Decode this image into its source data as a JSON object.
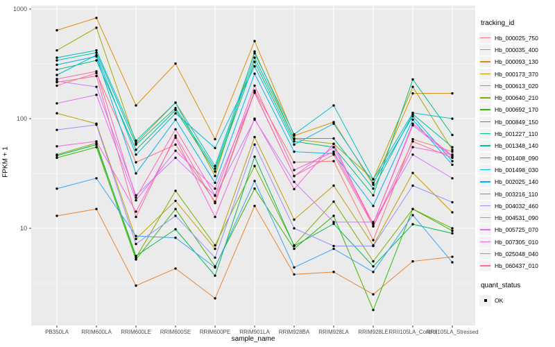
{
  "figure": {
    "background": "#FFFFFF",
    "panel_background": "#EBEBEB",
    "grid_color": "#FFFFFF",
    "tick_text_color": "#4D4D4D",
    "tick_mark_color": "#333333",
    "point_color": "#000000",
    "legend_key_fill": "#F2F2F2"
  },
  "axes": {
    "x_title": "sample_name",
    "y_title": "FPKM + 1"
  },
  "legend": {
    "title": "tracking_id",
    "quant_title": "quant_status",
    "quant_items": [
      {
        "label": "OK",
        "marker": "black-square"
      }
    ]
  },
  "chart_data": {
    "type": "line",
    "title": "",
    "xlabel": "sample_name",
    "ylabel": "FPKM + 1",
    "y_scale": "log10",
    "ylim": [
      1.3,
      1075
    ],
    "y_major_ticks": [
      10,
      100,
      1000
    ],
    "y_minor_ticks": [
      3.162,
      31.62,
      316.2
    ],
    "grid": true,
    "legend_position": "right",
    "marker": "point",
    "categories": [
      "PB350LA",
      "RRIM600LA",
      "RRIM600LE",
      "RRIM600SE",
      "RRIM600PE",
      "RRIM901LA",
      "RRIM928BA",
      "RRIM928LA",
      "RRIM928LE",
      "RRII105LA_Control",
      "RRII105LA_Stressed"
    ],
    "series": [
      {
        "name": "Hb_000025_750",
        "color": "#F8766D",
        "values": [
          200,
          260,
          40,
          58,
          17.5,
          180,
          40,
          41,
          7.8,
          65,
          50
        ]
      },
      {
        "name": "Hb_000035_400",
        "color": "#EA8331",
        "values": [
          13,
          15,
          3,
          4.3,
          2.3,
          16,
          3.8,
          4,
          2.5,
          5,
          5.5
        ]
      },
      {
        "name": "Hb_000093_130",
        "color": "#D89000",
        "values": [
          640,
          830,
          132,
          318,
          65,
          510,
          70,
          93,
          25,
          170,
          170
        ]
      },
      {
        "name": "Hb_000173_370",
        "color": "#C09B00",
        "values": [
          112,
          90,
          8,
          17.8,
          6.5,
          68,
          12,
          24.5,
          7,
          32,
          14
        ]
      },
      {
        "name": "Hb_000613_020",
        "color": "#A3A500",
        "values": [
          420,
          675,
          60,
          140,
          30,
          410,
          65,
          59,
          28,
          195,
          52
        ]
      },
      {
        "name": "Hb_000640_210",
        "color": "#7CAE00",
        "values": [
          47,
          60,
          5.4,
          22,
          7,
          37,
          7,
          17.5,
          5,
          15,
          10
        ]
      },
      {
        "name": "Hb_000692_170",
        "color": "#39B600",
        "values": [
          44,
          55,
          5.2,
          15,
          4.5,
          23,
          6.5,
          13,
          1.8,
          15,
          9.5
        ]
      },
      {
        "name": "Hb_000849_150",
        "color": "#00BB4E",
        "values": [
          46,
          58,
          5.6,
          9.8,
          3.7,
          45,
          6.9,
          11,
          4.5,
          10.9,
          9
        ]
      },
      {
        "name": "Hb_001227_110",
        "color": "#00BF7D",
        "values": [
          280,
          340,
          52,
          120,
          33,
          330,
          62,
          55,
          20,
          228,
          71
        ]
      },
      {
        "name": "Hb_001348_140",
        "color": "#00C1A3",
        "values": [
          340,
          400,
          58,
          125,
          35,
          360,
          66,
          66,
          23,
          110,
          55
        ]
      },
      {
        "name": "Hb_001408_090",
        "color": "#00BFC4",
        "values": [
          360,
          420,
          63,
          140,
          37,
          395,
          72,
          132,
          28,
          113,
          100
        ]
      },
      {
        "name": "Hb_001498_030",
        "color": "#00BAE0",
        "values": [
          250,
          380,
          47,
          112,
          54,
          300,
          58,
          90,
          26,
          105,
          41
        ]
      },
      {
        "name": "Hb_002025_140",
        "color": "#00B0F6",
        "values": [
          310,
          370,
          31.7,
          98,
          26,
          257,
          50,
          48,
          16,
          98,
          38
        ]
      },
      {
        "name": "Hb_003216_110",
        "color": "#35A2FF",
        "values": [
          23,
          28.6,
          8.5,
          8.2,
          4.4,
          27,
          4.4,
          6.5,
          4,
          13.2,
          4.9
        ]
      },
      {
        "name": "Hb_004032_460",
        "color": "#9590FF",
        "values": [
          79,
          88,
          7.2,
          13,
          5.4,
          58,
          10,
          6.9,
          6.9,
          24.5,
          17.3
        ]
      },
      {
        "name": "Hb_004531_090",
        "color": "#C77CFF",
        "values": [
          220,
          195,
          20,
          44,
          19.8,
          98,
          26.5,
          11.4,
          11.4,
          47,
          28.6
        ]
      },
      {
        "name": "Hb_005725_070",
        "color": "#E76BF3",
        "values": [
          138,
          165,
          18,
          51,
          23,
          172,
          30,
          55,
          11,
          87,
          45
        ]
      },
      {
        "name": "Hb_007305_010",
        "color": "#FA62DB",
        "values": [
          56,
          62,
          14.2,
          67,
          12.7,
          100,
          22.8,
          59,
          10.4,
          55,
          47
        ]
      },
      {
        "name": "Hb_025048_040",
        "color": "#FF62BC",
        "values": [
          230,
          270,
          19,
          80,
          20,
          200,
          34,
          50,
          11,
          90,
          46
        ]
      },
      {
        "name": "Hb_060437_010",
        "color": "#FF6A98",
        "values": [
          215,
          245,
          12.7,
          70,
          17,
          175,
          30,
          47,
          10.5,
          62,
          44
        ]
      }
    ]
  }
}
